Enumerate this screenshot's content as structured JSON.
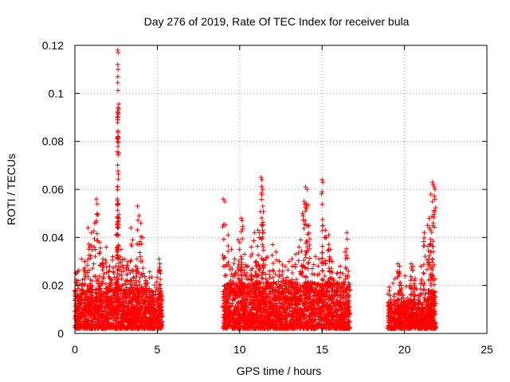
{
  "chart_data": {
    "type": "scatter",
    "title": "Day 276 of 2019, Rate Of TEC Index for receiver bula",
    "xlabel": "GPS time / hours",
    "ylabel": "ROTI / TECUs",
    "xlim": [
      0,
      25
    ],
    "ylim": [
      0,
      0.12
    ],
    "xticks": [
      0,
      5,
      10,
      15,
      20,
      25
    ],
    "yticks": [
      0,
      0.02,
      0.04,
      0.06,
      0.08,
      0.1,
      0.12
    ],
    "ytick_labels": [
      "0",
      "0.02",
      "0.04",
      "0.06",
      "0.08",
      "0.1",
      "0.12"
    ],
    "grid": true,
    "marker": "+",
    "series_color": "#ff0000",
    "background_segments": [
      {
        "x": [
          0.0,
          5.3
        ],
        "y_base": [
          0.002,
          0.014
        ]
      },
      {
        "x": [
          9.0,
          16.7
        ],
        "y_base": [
          0.002,
          0.016
        ]
      },
      {
        "x": [
          19.0,
          21.9
        ],
        "y_base": [
          0.002,
          0.01
        ]
      }
    ],
    "activity_points": [
      [
        0.1,
        0.025
      ],
      [
        0.2,
        0.022
      ],
      [
        0.4,
        0.031
      ],
      [
        0.6,
        0.03
      ],
      [
        0.8,
        0.044
      ],
      [
        0.9,
        0.036
      ],
      [
        1.0,
        0.042
      ],
      [
        1.2,
        0.046
      ],
      [
        1.3,
        0.056
      ],
      [
        1.35,
        0.054
      ],
      [
        1.5,
        0.038
      ],
      [
        1.7,
        0.031
      ],
      [
        1.9,
        0.036
      ],
      [
        2.1,
        0.028
      ],
      [
        2.3,
        0.032
      ],
      [
        2.5,
        0.041
      ],
      [
        2.6,
        0.118
      ],
      [
        2.62,
        0.117
      ],
      [
        2.6,
        0.112
      ],
      [
        2.62,
        0.11
      ],
      [
        2.6,
        0.107
      ],
      [
        2.62,
        0.09
      ],
      [
        2.6,
        0.089
      ],
      [
        2.62,
        0.082
      ],
      [
        2.6,
        0.081
      ],
      [
        2.8,
        0.035
      ],
      [
        3.0,
        0.031
      ],
      [
        3.2,
        0.03
      ],
      [
        3.4,
        0.044
      ],
      [
        3.5,
        0.039
      ],
      [
        3.7,
        0.028
      ],
      [
        3.8,
        0.053
      ],
      [
        3.9,
        0.049
      ],
      [
        4.0,
        0.046
      ],
      [
        4.1,
        0.04
      ],
      [
        4.3,
        0.022
      ],
      [
        4.6,
        0.017
      ],
      [
        5.1,
        0.031
      ],
      [
        5.15,
        0.029
      ],
      [
        5.2,
        0.025
      ],
      [
        9.0,
        0.056
      ],
      [
        9.1,
        0.055
      ],
      [
        9.3,
        0.041
      ],
      [
        9.5,
        0.035
      ],
      [
        9.7,
        0.031
      ],
      [
        9.9,
        0.039
      ],
      [
        10.0,
        0.038
      ],
      [
        10.1,
        0.048
      ],
      [
        10.15,
        0.047
      ],
      [
        10.3,
        0.033
      ],
      [
        10.5,
        0.028
      ],
      [
        10.7,
        0.036
      ],
      [
        10.9,
        0.042
      ],
      [
        11.0,
        0.03
      ],
      [
        11.1,
        0.043
      ],
      [
        11.2,
        0.042
      ],
      [
        11.3,
        0.065
      ],
      [
        11.35,
        0.064
      ],
      [
        11.4,
        0.06
      ],
      [
        11.4,
        0.053
      ],
      [
        11.6,
        0.031
      ],
      [
        11.8,
        0.026
      ],
      [
        12.0,
        0.037
      ],
      [
        12.2,
        0.034
      ],
      [
        12.4,
        0.03
      ],
      [
        12.6,
        0.026
      ],
      [
        12.8,
        0.022
      ],
      [
        13.0,
        0.03
      ],
      [
        13.2,
        0.028
      ],
      [
        13.4,
        0.033
      ],
      [
        13.6,
        0.036
      ],
      [
        13.7,
        0.039
      ],
      [
        13.8,
        0.05
      ],
      [
        13.9,
        0.055
      ],
      [
        14.0,
        0.061
      ],
      [
        14.1,
        0.06
      ],
      [
        14.05,
        0.052
      ],
      [
        14.2,
        0.045
      ],
      [
        14.4,
        0.027
      ],
      [
        14.8,
        0.031
      ],
      [
        15.0,
        0.064
      ],
      [
        15.05,
        0.063
      ],
      [
        15.0,
        0.059
      ],
      [
        15.2,
        0.043
      ],
      [
        15.4,
        0.041
      ],
      [
        15.5,
        0.035
      ],
      [
        15.6,
        0.03
      ],
      [
        15.9,
        0.025
      ],
      [
        16.1,
        0.028
      ],
      [
        16.4,
        0.034
      ],
      [
        16.5,
        0.042
      ],
      [
        16.6,
        0.026
      ],
      [
        19.6,
        0.029
      ],
      [
        19.7,
        0.028
      ],
      [
        19.8,
        0.02
      ],
      [
        20.0,
        0.013
      ],
      [
        20.4,
        0.029
      ],
      [
        20.5,
        0.028
      ],
      [
        20.6,
        0.022
      ],
      [
        21.0,
        0.028
      ],
      [
        21.2,
        0.042
      ],
      [
        21.4,
        0.045
      ],
      [
        21.5,
        0.048
      ],
      [
        21.6,
        0.058
      ],
      [
        21.7,
        0.063
      ],
      [
        21.75,
        0.062
      ],
      [
        21.8,
        0.061
      ],
      [
        21.85,
        0.06
      ],
      [
        21.7,
        0.055
      ],
      [
        21.6,
        0.037
      ],
      [
        21.7,
        0.031
      ]
    ]
  }
}
